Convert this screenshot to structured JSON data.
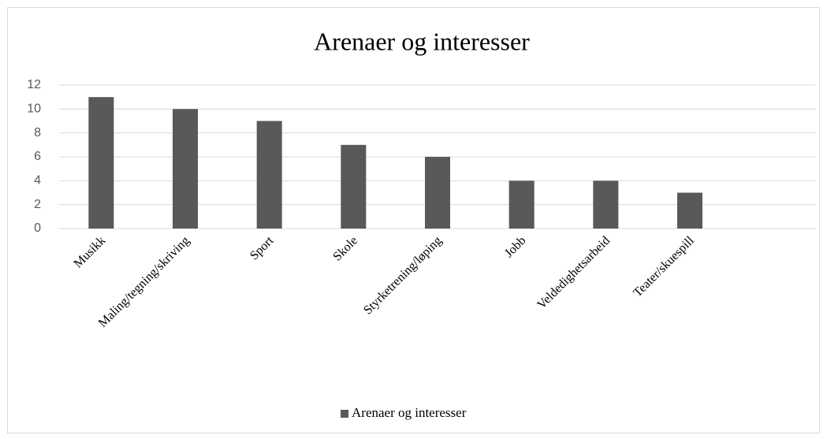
{
  "chart_data": {
    "type": "bar",
    "title": "Arenaer og interesser",
    "categories": [
      "Musikk",
      "Maling/tegning/skriving",
      "Sport",
      "Skole",
      "Styrketrening/løping",
      "Jobb",
      "Veldedighetsarbeid",
      "Teater/skuespill",
      null
    ],
    "series": [
      {
        "name": "Arenaer og interesser",
        "color": "#595959",
        "values": [
          11,
          10,
          9,
          7,
          6,
          4,
          4,
          3,
          null
        ]
      }
    ],
    "ylim": [
      0,
      12
    ],
    "yticks": [
      0,
      2,
      4,
      6,
      8,
      10,
      12
    ],
    "grid": true,
    "legend": "bottom"
  }
}
